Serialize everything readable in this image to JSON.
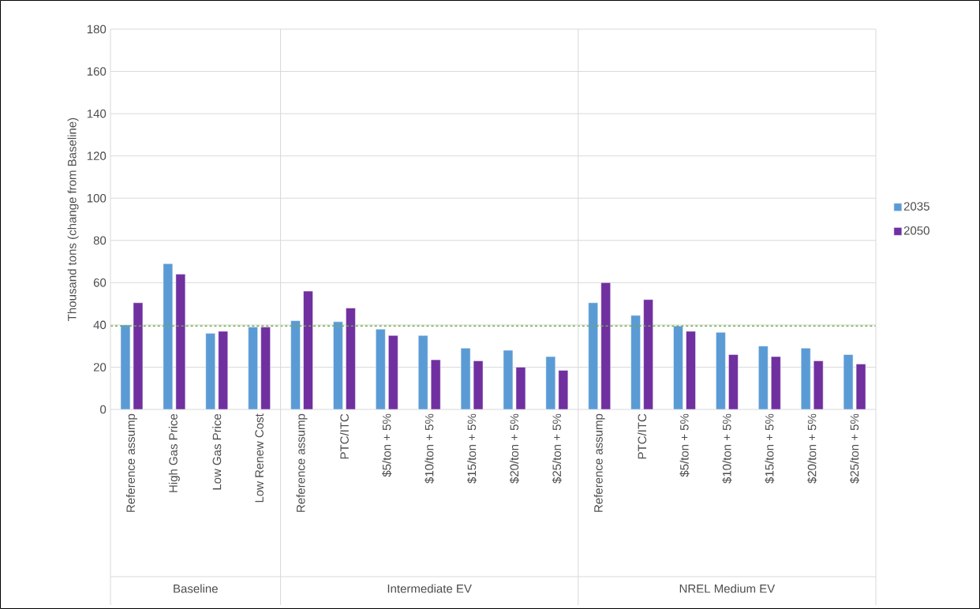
{
  "chart_data": {
    "type": "bar",
    "ylabel": "Thousand tons (change from Baseline)",
    "categories": [
      "Reference assump",
      "High Gas Price",
      "Low Gas Price",
      "Low Renew Cost",
      "Reference assump",
      "PTC/ITC",
      "$5/ton + 5%",
      "$10/ton + 5%",
      "$15/ton + 5%",
      "$20/ton + 5%",
      "$25/ton + 5%",
      "Reference assump",
      "PTC/ITC",
      "$5/ton + 5%",
      "$10/ton + 5%",
      "$15/ton + 5%",
      "$20/ton + 5%",
      "$25/ton + 5%"
    ],
    "series": [
      {
        "name": "2035",
        "color": "#5b9bd5",
        "values": [
          40,
          69,
          36,
          39,
          42,
          41.5,
          38,
          35,
          29,
          28,
          25,
          50.5,
          44.5,
          39.5,
          36.5,
          30,
          29,
          26
        ]
      },
      {
        "name": "2050",
        "color": "#7030a0",
        "values": [
          50.5,
          64,
          37,
          39,
          56,
          48,
          35,
          23.5,
          23,
          20,
          18.5,
          60,
          52,
          37,
          26,
          25,
          23,
          21.5
        ]
      }
    ],
    "ylim": [
      0,
      180
    ],
    "yticks": [
      0,
      20,
      40,
      60,
      80,
      100,
      120,
      140,
      160,
      180
    ],
    "grid": "y",
    "legend": "right",
    "ref_lines": [
      {
        "axis": "y",
        "value": 39.5,
        "color": "#70ad47",
        "line_style": "dashed"
      }
    ],
    "annotations": [
      "Baseline",
      "Intermediate EV",
      "NREL Medium EV"
    ]
  }
}
